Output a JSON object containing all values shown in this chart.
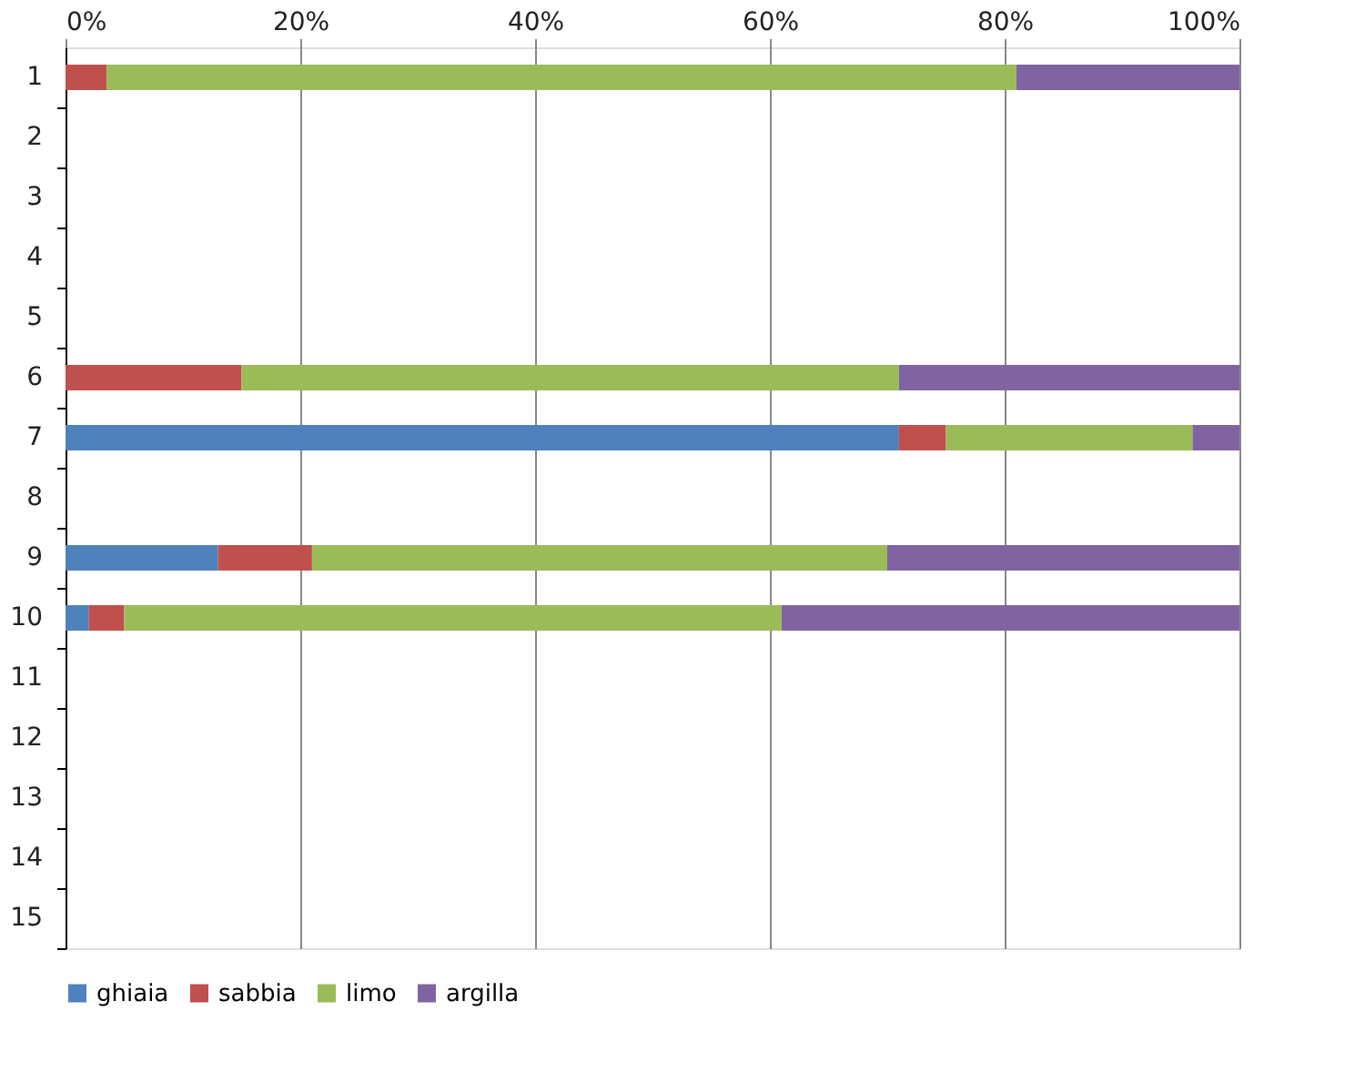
{
  "chart_data": {
    "type": "bar",
    "orientation": "horizontal",
    "stacked": true,
    "categories": [
      "1",
      "2",
      "3",
      "4",
      "5",
      "6",
      "7",
      "8",
      "9",
      "10",
      "11",
      "12",
      "13",
      "14",
      "15"
    ],
    "series": [
      {
        "name": "ghiaia",
        "color": "#4f81bd",
        "values": [
          0,
          null,
          null,
          null,
          null,
          0,
          71,
          null,
          13,
          2,
          null,
          null,
          null,
          null,
          null
        ]
      },
      {
        "name": "sabbia",
        "color": "#c0504d",
        "values": [
          3.5,
          null,
          null,
          null,
          null,
          15,
          4,
          null,
          8,
          3,
          null,
          null,
          null,
          null,
          null
        ]
      },
      {
        "name": "limo",
        "color": "#9bbb59",
        "values": [
          77.5,
          null,
          null,
          null,
          null,
          56,
          21,
          null,
          49,
          56,
          null,
          null,
          null,
          null,
          null
        ]
      },
      {
        "name": "argilla",
        "color": "#8064a2",
        "values": [
          19,
          null,
          null,
          null,
          null,
          29,
          4,
          null,
          30,
          39,
          null,
          null,
          null,
          null,
          null
        ]
      }
    ],
    "xlim": [
      0,
      100
    ],
    "xticks": [
      {
        "value": 0,
        "label": "0%"
      },
      {
        "value": 20,
        "label": "20%"
      },
      {
        "value": 40,
        "label": "40%"
      },
      {
        "value": 60,
        "label": "60%"
      },
      {
        "value": 80,
        "label": "80%"
      },
      {
        "value": 100,
        "label": "100%"
      }
    ],
    "grid": "x",
    "legend": "bottom"
  }
}
